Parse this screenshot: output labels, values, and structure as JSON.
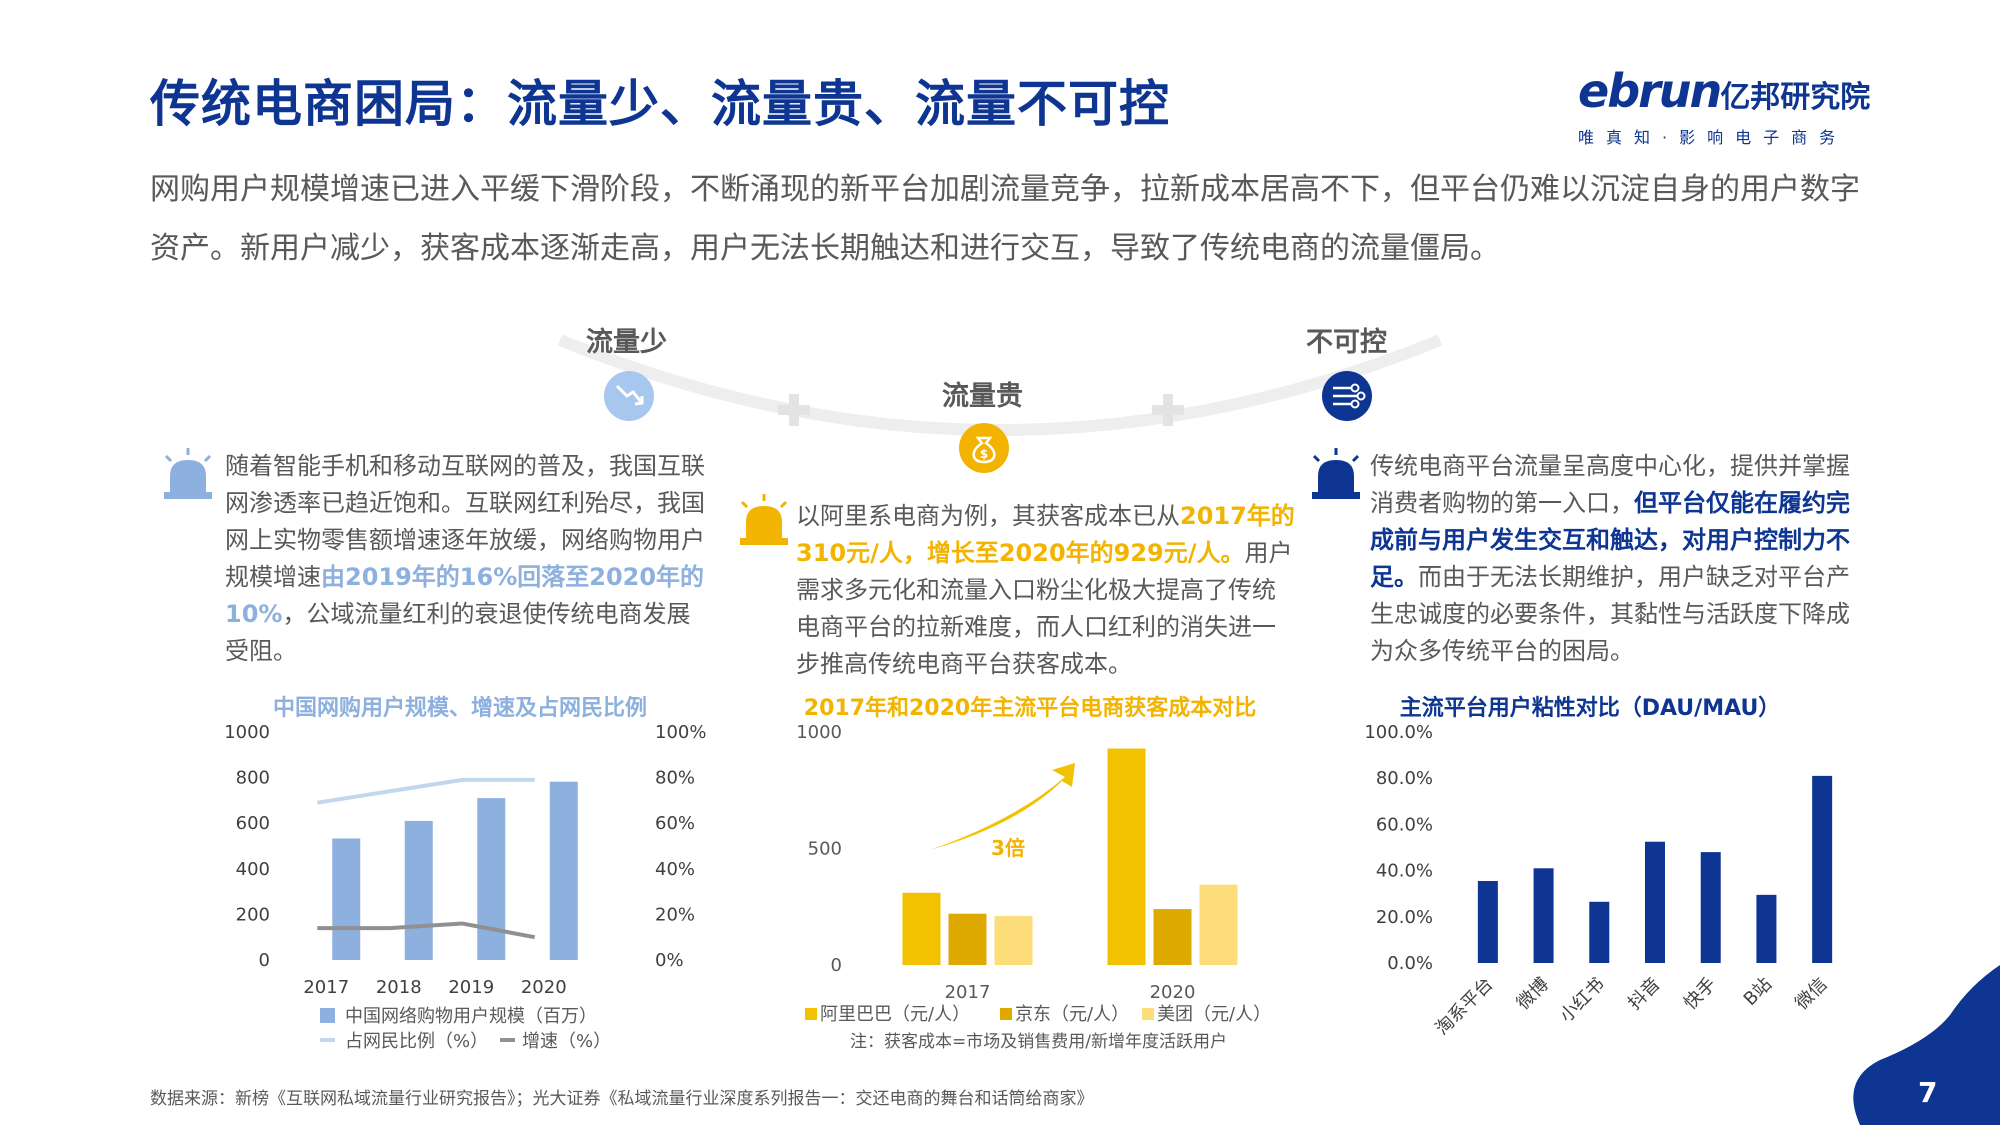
{
  "title": "传统电商困局：流量少、流量贵、流量不可控",
  "logo": {
    "main": "ebrun",
    "cn": "亿邦研究院",
    "tagline": "唯真知·影响电子商务"
  },
  "intro": "网购用户规模增速已进入平缓下滑阶段，不断涌现的新平台加剧流量竞争，拉新成本居高不下，但平台仍难以沉淀自身的用户数字资产。新用户减少，获客成本逐渐走高，用户无法长期触达和进行交互，导致了传统电商的流量僵局。",
  "pillars": {
    "left": "流量少",
    "mid": "流量贵",
    "right": "不可控",
    "plus": "+"
  },
  "columns": {
    "left": {
      "t1": "随着智能手机和移动互联网的普及，我国互联网渗透率已趋近饱和。互联网红利殆尽，我国网上实物零售额增速逐年放缓，网络购物用户规模增速",
      "hl": "由2019年的16%回落至2020年的10%",
      "t2": "，公域流量红利的衰退使传统电商发展受阻。"
    },
    "mid": {
      "t1": "以阿里系电商为例，其获客成本已从",
      "hl": "2017年的310元/人，增长至2020年的929元/人。",
      "t2": "用户需求多元化和流量入口粉尘化极大提高了传统电商平台的拉新难度，而人口红利的消失进一步推高传统电商平台获客成本。"
    },
    "right": {
      "t1": "传统电商平台流量呈高度中心化，提供并掌握消费者购物的第一入口，",
      "hl": "但平台仅能在履约完成前与用户发生交互和触达，对用户控制力不足。",
      "t2": "而由于无法长期维护，用户缺乏对平台产生忠诚度的必要条件，其黏性与活跃度下降成为众多传统平台的困局。"
    }
  },
  "colors": {
    "navy": "#0d3591",
    "lightblue": "#8db0de",
    "gold": "#f2b400",
    "gray": "#909090"
  },
  "chart_data": [
    {
      "type": "bar",
      "title": "中国网购用户规模、增速及占网民比例",
      "categories": [
        "2017",
        "2018",
        "2019",
        "2020"
      ],
      "series": [
        {
          "name": "中国网络购物用户规模（百万）",
          "type": "bar",
          "axis": "left",
          "values": [
            533,
            610,
            710,
            782
          ]
        },
        {
          "name": "占网民比例（%）",
          "type": "line",
          "axis": "right",
          "values": [
            69,
            74,
            79,
            79
          ]
        },
        {
          "name": "增速（%）",
          "type": "line",
          "axis": "right",
          "values": [
            14,
            14,
            16,
            10
          ]
        }
      ],
      "y_left": {
        "range": [
          0,
          1000
        ],
        "ticks": [
          "0",
          "200",
          "400",
          "600",
          "800",
          "1000"
        ]
      },
      "y_right": {
        "range": [
          0,
          100
        ],
        "ticks": [
          "0%",
          "20%",
          "40%",
          "60%",
          "80%",
          "100%"
        ]
      },
      "legend_position": "bottom"
    },
    {
      "type": "bar",
      "title": "2017年和2020年主流平台电商获客成本对比",
      "categories": [
        "2017",
        "2020"
      ],
      "series": [
        {
          "name": "阿里巴巴（元/人）",
          "values": [
            310,
            929
          ]
        },
        {
          "name": "京东（元/人）",
          "values": [
            220,
            240
          ]
        },
        {
          "name": "美团（元/人）",
          "values": [
            210,
            345
          ]
        }
      ],
      "y_axis": {
        "range": [
          0,
          1000
        ],
        "ticks": [
          "0",
          "500",
          "1000"
        ]
      },
      "annotation": "3倍",
      "note": "注：获客成本=市场及销售费用/新增年度活跃用户",
      "legend_position": "bottom"
    },
    {
      "type": "bar",
      "title": "主流平台用户粘性对比（DAU/MAU）",
      "categories": [
        "淘系平台",
        "微博",
        "小红书",
        "抖音",
        "快手",
        "B站",
        "微信"
      ],
      "values": [
        35.5,
        41,
        26.5,
        52.5,
        48,
        29.5,
        81
      ],
      "y_axis": {
        "range": [
          0,
          100
        ],
        "ticks": [
          "0.0%",
          "20.0%",
          "40.0%",
          "60.0%",
          "80.0%",
          "100.0%"
        ]
      },
      "legend_position": "none"
    }
  ],
  "source": "数据来源：新榜《互联网私域流量行业研究报告》；光大证券《私域流量行业深度系列报告一：交还电商的舞台和话筒给商家》",
  "page_number": "7"
}
